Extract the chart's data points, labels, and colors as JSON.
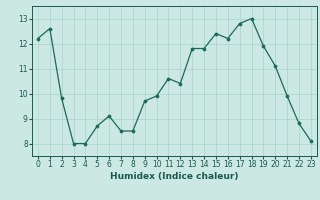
{
  "x": [
    0,
    1,
    2,
    3,
    4,
    5,
    6,
    7,
    8,
    9,
    10,
    11,
    12,
    13,
    14,
    15,
    16,
    17,
    18,
    19,
    20,
    21,
    22,
    23
  ],
  "y": [
    12.2,
    12.6,
    9.8,
    8.0,
    8.0,
    8.7,
    9.1,
    8.5,
    8.5,
    9.7,
    9.9,
    10.6,
    10.4,
    11.8,
    11.8,
    12.4,
    12.2,
    12.8,
    13.0,
    11.9,
    11.1,
    9.9,
    8.8,
    8.1
  ],
  "title": "",
  "xlabel": "Humidex (Indice chaleur)",
  "ylabel": "",
  "ylim": [
    7.5,
    13.5
  ],
  "xlim": [
    -0.5,
    23.5
  ],
  "yticks": [
    8,
    9,
    10,
    11,
    12,
    13
  ],
  "xticks": [
    0,
    1,
    2,
    3,
    4,
    5,
    6,
    7,
    8,
    9,
    10,
    11,
    12,
    13,
    14,
    15,
    16,
    17,
    18,
    19,
    20,
    21,
    22,
    23
  ],
  "line_color": "#1a6b5a",
  "marker_color": "#1a6b5a",
  "bg_color": "#cce8e3",
  "grid_color": "#a8d4cc",
  "axes_color": "#1a5a50",
  "label_fontsize": 6.5,
  "tick_fontsize": 5.5
}
